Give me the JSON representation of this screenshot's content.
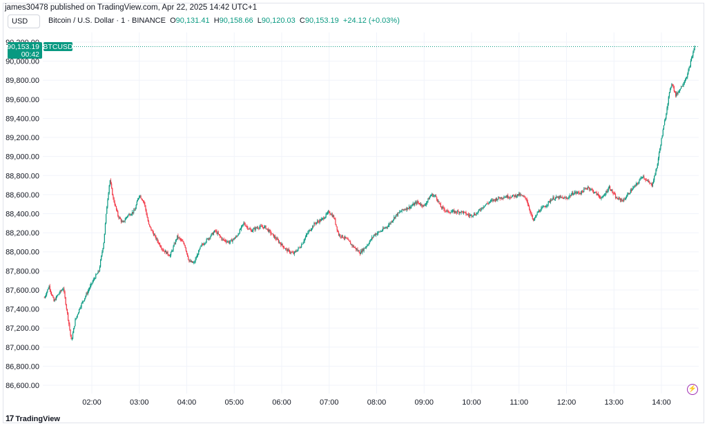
{
  "header": {
    "published": "james30478 published on TradingView.com, Apr 22, 2025 14:42 UTC+1"
  },
  "currency_button": "USD",
  "legend": {
    "symbol": "Bitcoin / U.S. Dollar · 1 · BINANCE",
    "o_label": "O",
    "o_value": "90,131.41",
    "h_label": "H",
    "h_value": "90,158.66",
    "l_label": "L",
    "l_value": "90,120.03",
    "c_label": "C",
    "c_value": "90,153.19",
    "change": "+24.12 (+0.03%)"
  },
  "price_badge": {
    "price": "90,153.19",
    "countdown": "00:42",
    "ticker": "BTCUSD"
  },
  "footer": {
    "brand": "TradingView"
  },
  "colors": {
    "up": "#089981",
    "down": "#f23645",
    "grid": "#f0f3fa",
    "axis_text": "#131722",
    "alert_icon": "#9c27b0"
  },
  "icons": {
    "alert": "lightning-alert-icon",
    "brand_logo": "tradingview-logo-icon"
  },
  "chart_data": {
    "type": "candlestick",
    "title": "",
    "ylim": [
      86500,
      90200
    ],
    "y_ticks": [
      86600,
      86800,
      87000,
      87200,
      87400,
      87600,
      87800,
      88000,
      88200,
      88400,
      88600,
      88800,
      89000,
      89200,
      89400,
      89600,
      89800,
      90000,
      90200
    ],
    "y_tick_labels": [
      "86,600.00",
      "86,800.00",
      "87,000.00",
      "87,200.00",
      "87,400.00",
      "87,600.00",
      "87,800.00",
      "88,000.00",
      "88,200.00",
      "88,400.00",
      "88,600.00",
      "88,800.00",
      "89,000.00",
      "89,200.00",
      "89,400.00",
      "89,600.00",
      "89,800.00",
      "90,000.00",
      "90,200.00"
    ],
    "x_ticks": [
      "02:00",
      "03:00",
      "04:00",
      "05:00",
      "06:00",
      "07:00",
      "08:00",
      "09:00",
      "10:00",
      "11:00",
      "12:00",
      "13:00",
      "14:00"
    ],
    "x_tick_hours": [
      2,
      3,
      4,
      5,
      6,
      7,
      8,
      9,
      10,
      11,
      12,
      13,
      14
    ],
    "x_range_hours": [
      1.0,
      14.82
    ],
    "grid": true,
    "last_price": 90153.19,
    "price_path": [
      [
        1.0,
        87520
      ],
      [
        1.1,
        87640
      ],
      [
        1.2,
        87480
      ],
      [
        1.3,
        87560
      ],
      [
        1.4,
        87620
      ],
      [
        1.5,
        87300
      ],
      [
        1.57,
        87060
      ],
      [
        1.65,
        87280
      ],
      [
        1.75,
        87420
      ],
      [
        1.85,
        87520
      ],
      [
        1.95,
        87620
      ],
      [
        2.05,
        87720
      ],
      [
        2.15,
        87800
      ],
      [
        2.25,
        88100
      ],
      [
        2.32,
        88500
      ],
      [
        2.38,
        88760
      ],
      [
        2.45,
        88560
      ],
      [
        2.55,
        88380
      ],
      [
        2.65,
        88300
      ],
      [
        2.75,
        88380
      ],
      [
        2.9,
        88430
      ],
      [
        3.0,
        88600
      ],
      [
        3.1,
        88520
      ],
      [
        3.2,
        88280
      ],
      [
        3.35,
        88140
      ],
      [
        3.5,
        88020
      ],
      [
        3.65,
        87960
      ],
      [
        3.8,
        88160
      ],
      [
        3.95,
        88080
      ],
      [
        4.05,
        87900
      ],
      [
        4.15,
        87880
      ],
      [
        4.3,
        88060
      ],
      [
        4.45,
        88140
      ],
      [
        4.6,
        88220
      ],
      [
        4.75,
        88130
      ],
      [
        4.9,
        88100
      ],
      [
        5.05,
        88160
      ],
      [
        5.2,
        88300
      ],
      [
        5.35,
        88220
      ],
      [
        5.5,
        88260
      ],
      [
        5.65,
        88260
      ],
      [
        5.8,
        88180
      ],
      [
        5.95,
        88100
      ],
      [
        6.1,
        88020
      ],
      [
        6.25,
        87980
      ],
      [
        6.4,
        88060
      ],
      [
        6.55,
        88200
      ],
      [
        6.7,
        88300
      ],
      [
        6.85,
        88340
      ],
      [
        7.0,
        88420
      ],
      [
        7.1,
        88360
      ],
      [
        7.2,
        88180
      ],
      [
        7.35,
        88140
      ],
      [
        7.5,
        88060
      ],
      [
        7.65,
        87990
      ],
      [
        7.8,
        88070
      ],
      [
        7.95,
        88180
      ],
      [
        8.1,
        88220
      ],
      [
        8.25,
        88280
      ],
      [
        8.4,
        88380
      ],
      [
        8.55,
        88440
      ],
      [
        8.7,
        88470
      ],
      [
        8.85,
        88520
      ],
      [
        9.0,
        88480
      ],
      [
        9.15,
        88600
      ],
      [
        9.25,
        88580
      ],
      [
        9.35,
        88470
      ],
      [
        9.5,
        88420
      ],
      [
        9.65,
        88420
      ],
      [
        9.8,
        88420
      ],
      [
        9.95,
        88380
      ],
      [
        10.1,
        88400
      ],
      [
        10.25,
        88480
      ],
      [
        10.4,
        88530
      ],
      [
        10.55,
        88560
      ],
      [
        10.7,
        88580
      ],
      [
        10.85,
        88580
      ],
      [
        11.0,
        88600
      ],
      [
        11.15,
        88560
      ],
      [
        11.3,
        88320
      ],
      [
        11.4,
        88420
      ],
      [
        11.55,
        88480
      ],
      [
        11.7,
        88560
      ],
      [
        11.85,
        88570
      ],
      [
        12.0,
        88560
      ],
      [
        12.15,
        88620
      ],
      [
        12.3,
        88620
      ],
      [
        12.45,
        88680
      ],
      [
        12.6,
        88620
      ],
      [
        12.75,
        88560
      ],
      [
        12.9,
        88680
      ],
      [
        13.05,
        88560
      ],
      [
        13.2,
        88540
      ],
      [
        13.35,
        88640
      ],
      [
        13.5,
        88720
      ],
      [
        13.6,
        88800
      ],
      [
        13.7,
        88740
      ],
      [
        13.8,
        88700
      ],
      [
        13.9,
        88880
      ],
      [
        14.0,
        89180
      ],
      [
        14.08,
        89400
      ],
      [
        14.15,
        89620
      ],
      [
        14.22,
        89780
      ],
      [
        14.3,
        89640
      ],
      [
        14.38,
        89700
      ],
      [
        14.45,
        89760
      ],
      [
        14.55,
        89860
      ],
      [
        14.62,
        90000
      ],
      [
        14.7,
        90153
      ]
    ]
  }
}
